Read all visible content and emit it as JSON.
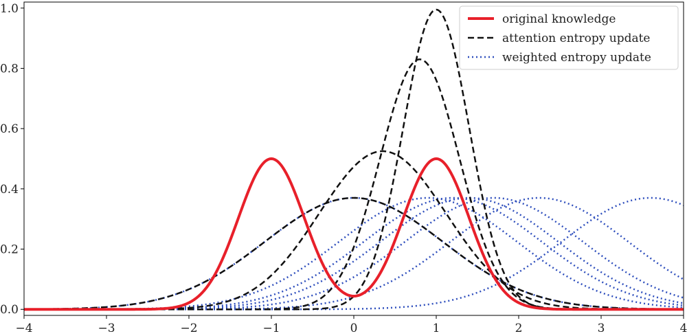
{
  "chart_data": {
    "type": "line",
    "title": "",
    "xlabel": "",
    "ylabel": "",
    "xlim": [
      -4,
      4
    ],
    "ylim": [
      0,
      1.0
    ],
    "x_ticks": [
      -4,
      -3,
      -2,
      -1,
      0,
      1,
      2,
      3,
      4
    ],
    "x_tick_labels": [
      "−4",
      "−3",
      "−2",
      "−1",
      "0",
      "1",
      "2",
      "3",
      "4"
    ],
    "y_ticks": [
      0.0,
      0.2,
      0.4,
      0.6,
      0.8,
      1.0
    ],
    "y_tick_labels": [
      "0.0",
      "0.2",
      "0.4",
      "0.6",
      "0.8",
      "1.0"
    ],
    "grid": false,
    "legend_position": "top-right",
    "series": [
      {
        "name": "original knowledge",
        "style": "solid",
        "color": "#e8202a",
        "description_of_form": "mixture of two Gaussians",
        "components": [
          {
            "mean": -1.0,
            "std": 0.4,
            "weight": 0.5
          },
          {
            "mean": 1.0,
            "std": 0.4,
            "weight": 0.5
          }
        ],
        "peak_values": [
          {
            "x": -1.0,
            "y": 0.5
          },
          {
            "x": 1.0,
            "y": 0.5
          }
        ]
      },
      {
        "name": "attention entropy update",
        "style": "dashed",
        "color": "#111111",
        "curves": [
          {
            "mean": 0.0,
            "std": 1.08,
            "peak": 0.37
          },
          {
            "mean": 0.35,
            "std": 0.77,
            "peak": 0.525
          },
          {
            "mean": 0.8,
            "std": 0.48,
            "peak": 0.83
          },
          {
            "mean": 1.0,
            "std": 0.4,
            "peak": 0.995
          }
        ]
      },
      {
        "name": "weighted entropy update",
        "style": "dotted",
        "color": "#2f4fbd",
        "curves": [
          {
            "mean": 0.0,
            "std": 1.08,
            "peak": 0.37
          },
          {
            "mean": 0.9,
            "std": 1.08,
            "peak": 0.37
          },
          {
            "mean": 1.2,
            "std": 1.08,
            "peak": 0.37
          },
          {
            "mean": 1.4,
            "std": 1.08,
            "peak": 0.37
          },
          {
            "mean": 1.7,
            "std": 1.08,
            "peak": 0.37
          },
          {
            "mean": 2.25,
            "std": 1.08,
            "peak": 0.37
          },
          {
            "mean": 3.6,
            "std": 1.08,
            "peak": 0.37
          }
        ]
      }
    ]
  }
}
